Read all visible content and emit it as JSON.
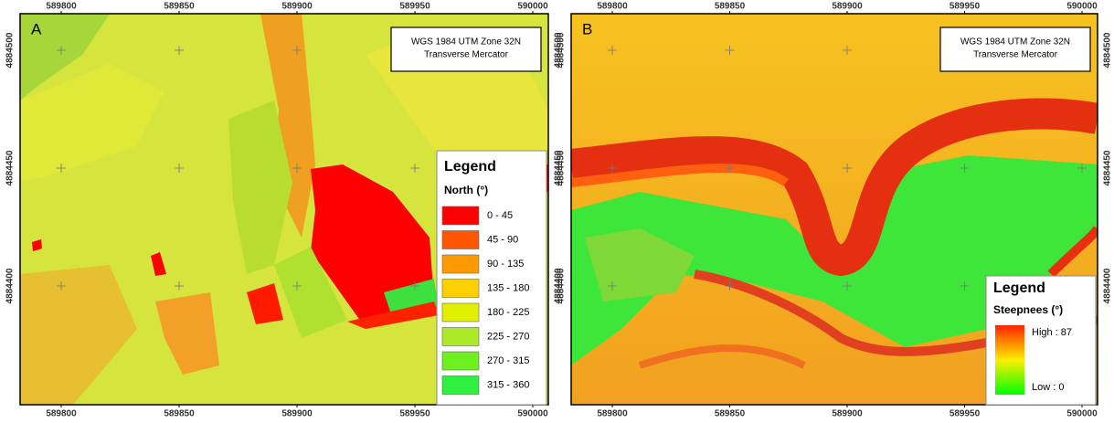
{
  "panels": [
    {
      "label": "A",
      "projection": [
        "WGS 1984 UTM Zone 32N",
        "Transverse Mercator"
      ],
      "x_ticks": [
        "589800",
        "589850",
        "589900",
        "589950",
        "590000"
      ],
      "y_ticks": [
        "4884500",
        "4884450",
        "4884400"
      ],
      "legend": {
        "title": "Legend",
        "subtitle": "North (°)",
        "items": [
          {
            "label": "0 - 45",
            "color": "#ff0000"
          },
          {
            "label": "45 - 90",
            "color": "#ff5500"
          },
          {
            "label": "90 - 135",
            "color": "#ff9900"
          },
          {
            "label": "135 - 180",
            "color": "#ffd000"
          },
          {
            "label": "180 - 225",
            "color": "#e2f000"
          },
          {
            "label": "225 - 270",
            "color": "#aaea28"
          },
          {
            "label": "270 - 315",
            "color": "#6ef020"
          },
          {
            "label": "315 - 360",
            "color": "#2ef040"
          }
        ]
      }
    },
    {
      "label": "B",
      "projection": [
        "WGS 1984 UTM Zone 32N",
        "Transverse Mercator"
      ],
      "x_ticks": [
        "589800",
        "589850",
        "589900",
        "589950",
        "590000"
      ],
      "y_ticks": [
        "4884500",
        "4884450",
        "4884400"
      ],
      "legend": {
        "title": "Legend",
        "subtitle": "Steepnees (°)",
        "high": "High : 87",
        "low": "Low : 0",
        "colors": [
          "#ff2200",
          "#ffee00",
          "#00ff00"
        ]
      }
    }
  ]
}
